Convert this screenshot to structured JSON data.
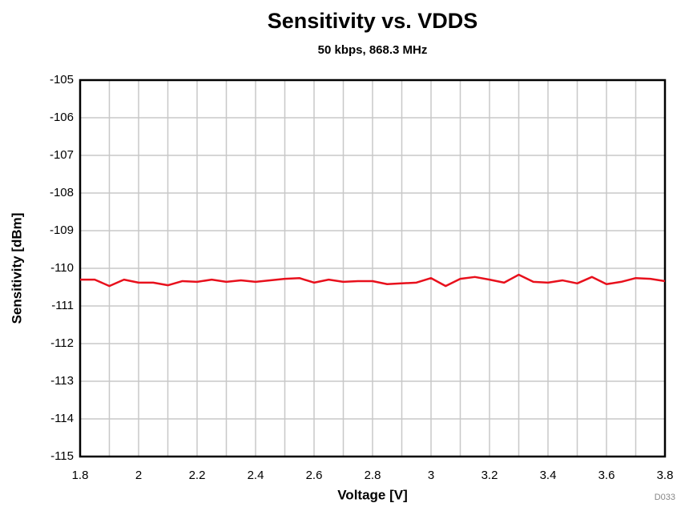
{
  "chart_data": {
    "type": "line",
    "title": "Sensitivity vs. VDDS",
    "subtitle": "50 kbps, 868.3 MHz",
    "x_label": "Voltage [V]",
    "y_label": "Sensitivity [dBm]",
    "annotation": "D033",
    "x": [
      1.8,
      1.85,
      1.9,
      1.95,
      2.0,
      2.05,
      2.1,
      2.15,
      2.2,
      2.25,
      2.3,
      2.35,
      2.4,
      2.45,
      2.5,
      2.55,
      2.6,
      2.65,
      2.7,
      2.75,
      2.8,
      2.85,
      2.9,
      2.95,
      3.0,
      3.05,
      3.1,
      3.15,
      3.2,
      3.25,
      3.3,
      3.35,
      3.4,
      3.45,
      3.5,
      3.55,
      3.6,
      3.65,
      3.7,
      3.75,
      3.8
    ],
    "series": [
      {
        "color": "#e8101c",
        "values": [
          -110.3,
          -110.3,
          -110.47,
          -110.3,
          -110.38,
          -110.38,
          -110.45,
          -110.34,
          -110.36,
          -110.3,
          -110.36,
          -110.32,
          -110.36,
          -110.32,
          -110.28,
          -110.26,
          -110.38,
          -110.3,
          -110.36,
          -110.34,
          -110.34,
          -110.42,
          -110.4,
          -110.38,
          -110.26,
          -110.47,
          -110.28,
          -110.23,
          -110.3,
          -110.38,
          -110.17,
          -110.36,
          -110.38,
          -110.32,
          -110.4,
          -110.23,
          -110.42,
          -110.36,
          -110.26,
          -110.28,
          -110.34
        ]
      }
    ],
    "xlim": [
      1.8,
      3.8
    ],
    "ylim": [
      -115,
      -105
    ],
    "xticks": [
      1.8,
      2,
      2.2,
      2.4,
      2.6,
      2.8,
      3,
      3.2,
      3.4,
      3.6,
      3.8
    ],
    "x_minor_grid": [
      1.9,
      2.1,
      2.3,
      2.5,
      2.7,
      2.9,
      3.1,
      3.3,
      3.5,
      3.7
    ],
    "yticks": [
      -105,
      -106,
      -107,
      -108,
      -109,
      -110,
      -111,
      -112,
      -113,
      -114,
      -115
    ],
    "grid": true
  }
}
